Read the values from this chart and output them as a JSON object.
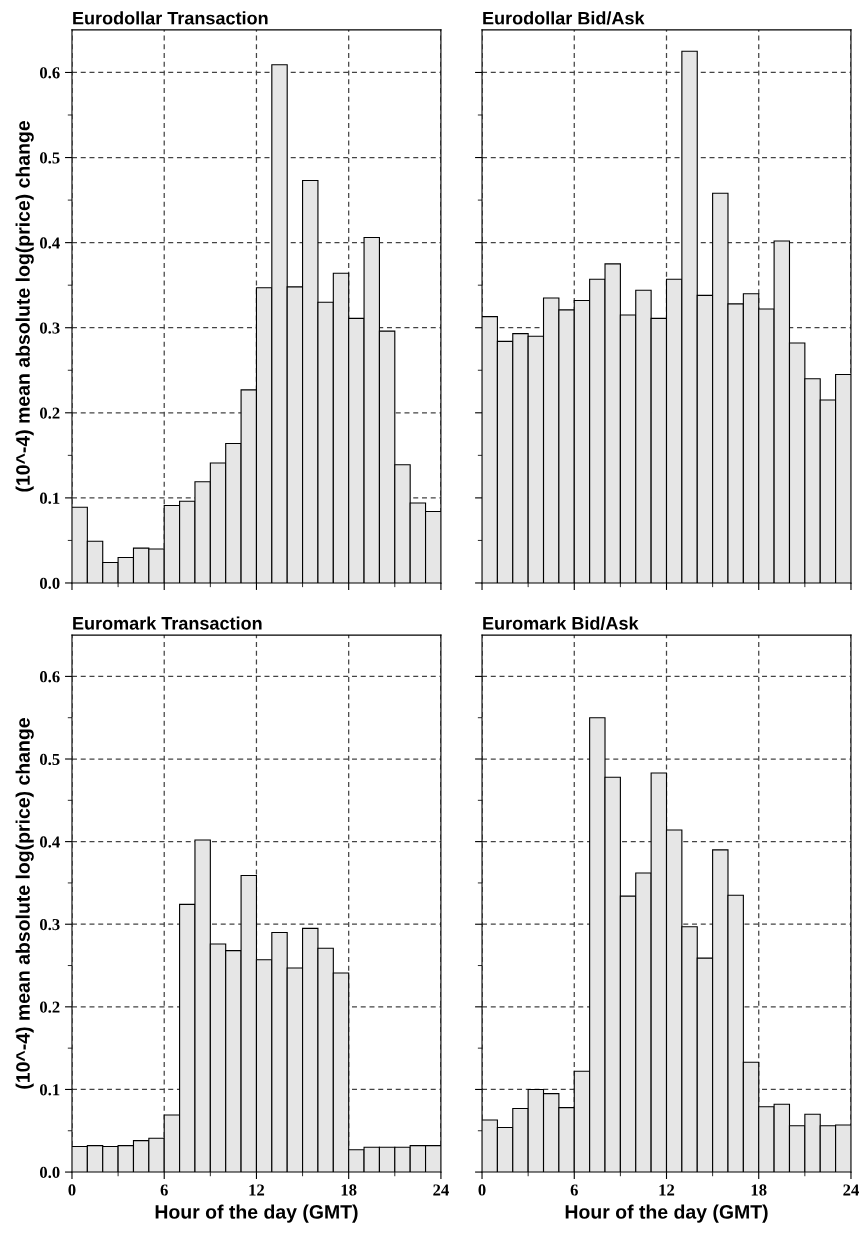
{
  "chart_data": [
    {
      "type": "histogram",
      "title": "Eurodollar Transaction",
      "ylabel": "(10^-4) mean absolute log(price) change",
      "bins": [
        0,
        1,
        2,
        3,
        4,
        5,
        6,
        7,
        8,
        9,
        10,
        11,
        12,
        13,
        14,
        15,
        16,
        17,
        18,
        19,
        20,
        21,
        22,
        23,
        24
      ],
      "values": [
        0.089,
        0.049,
        0.024,
        0.03,
        0.041,
        0.04,
        0.091,
        0.096,
        0.119,
        0.141,
        0.164,
        0.227,
        0.347,
        0.609,
        0.348,
        0.473,
        0.33,
        0.364,
        0.311,
        0.406,
        0.296,
        0.139,
        0.094,
        0.084
      ],
      "color": "#e6e6e6",
      "xlim": [
        0,
        24
      ],
      "ylim": [
        0,
        0.65
      ],
      "yticks": [
        {
          "value": 0,
          "label": "0.0"
        },
        {
          "value": 0.05,
          "label": null
        },
        {
          "value": 0.1,
          "label": "0.1"
        },
        {
          "value": 0.15,
          "label": null
        },
        {
          "value": 0.2,
          "label": "0.2"
        },
        {
          "value": 0.25,
          "label": null
        },
        {
          "value": 0.3,
          "label": "0.3"
        },
        {
          "value": 0.35,
          "label": null
        },
        {
          "value": 0.4,
          "label": "0.4"
        },
        {
          "value": 0.45,
          "label": null
        },
        {
          "value": 0.5,
          "label": "0.5"
        },
        {
          "value": 0.55,
          "label": null
        },
        {
          "value": 0.6,
          "label": "0.6"
        }
      ],
      "grid": true,
      "line_style": "dashed",
      "tick_labels": "y"
    },
    {
      "type": "histogram",
      "title": "Eurodollar Bid/Ask",
      "bins": [
        0,
        1,
        2,
        3,
        4,
        5,
        6,
        7,
        8,
        9,
        10,
        11,
        12,
        13,
        14,
        15,
        16,
        17,
        18,
        19,
        20,
        21,
        22,
        23,
        24
      ],
      "values": [
        0.313,
        0.284,
        0.293,
        0.29,
        0.335,
        0.321,
        0.332,
        0.357,
        0.375,
        0.315,
        0.344,
        0.311,
        0.357,
        0.625,
        0.338,
        0.458,
        0.328,
        0.34,
        0.322,
        0.402,
        0.282,
        0.24,
        0.215,
        0.245
      ],
      "color": "#e6e6e6",
      "xlim": [
        0,
        24
      ],
      "ylim": [
        0,
        0.65
      ],
      "grid": true,
      "line_style": "dashed",
      "tick_labels": false
    },
    {
      "type": "histogram",
      "title": "Euromark Transaction",
      "xlabel": "Hour of the day (GMT)",
      "ylabel": "(10^-4) mean absolute log(price) change",
      "bins": [
        0,
        1,
        2,
        3,
        4,
        5,
        6,
        7,
        8,
        9,
        10,
        11,
        12,
        13,
        14,
        15,
        16,
        17,
        18,
        19,
        20,
        21,
        22,
        23,
        24
      ],
      "values": [
        0.031,
        0.032,
        0.031,
        0.032,
        0.038,
        0.041,
        0.069,
        0.324,
        0.402,
        0.276,
        0.268,
        0.359,
        0.257,
        0.29,
        0.247,
        0.295,
        0.271,
        0.241,
        0.027,
        0.03,
        0.03,
        0.03,
        0.032,
        0.032
      ],
      "color": "#e6e6e6",
      "xlim": [
        0,
        24
      ],
      "ylim": [
        0,
        0.65
      ],
      "xticks": [
        0,
        {
          "value": 3,
          "label": null
        },
        6,
        {
          "value": 9,
          "label": null
        },
        12,
        {
          "value": 15,
          "label": null
        },
        18,
        {
          "value": 21,
          "label": null
        },
        24
      ],
      "yticks": [
        {
          "value": 0,
          "label": "0.0"
        },
        {
          "value": 0.05,
          "label": null
        },
        {
          "value": 0.1,
          "label": "0.1"
        },
        {
          "value": 0.15,
          "label": null
        },
        {
          "value": 0.2,
          "label": "0.2"
        },
        {
          "value": 0.25,
          "label": null
        },
        {
          "value": 0.3,
          "label": "0.3"
        },
        {
          "value": 0.35,
          "label": null
        },
        {
          "value": 0.4,
          "label": "0.4"
        },
        {
          "value": 0.45,
          "label": null
        },
        {
          "value": 0.5,
          "label": "0.5"
        },
        {
          "value": 0.55,
          "label": null
        },
        {
          "value": 0.6,
          "label": "0.6"
        }
      ],
      "grid": true,
      "line_style": "dashed"
    },
    {
      "type": "histogram",
      "title": "Euromark Bid/Ask",
      "xlabel": "Hour of the day (GMT)",
      "bins": [
        0,
        1,
        2,
        3,
        4,
        5,
        6,
        7,
        8,
        9,
        10,
        11,
        12,
        13,
        14,
        15,
        16,
        17,
        18,
        19,
        20,
        21,
        22,
        23,
        24
      ],
      "values": [
        0.063,
        0.054,
        0.077,
        0.1,
        0.095,
        0.078,
        0.122,
        0.55,
        0.478,
        0.334,
        0.362,
        0.483,
        0.414,
        0.297,
        0.259,
        0.39,
        0.335,
        0.133,
        0.079,
        0.082,
        0.056,
        0.07,
        0.056,
        0.057
      ],
      "color": "#e6e6e6",
      "xlim": [
        0,
        24
      ],
      "ylim": [
        0,
        0.65
      ],
      "xticks": [
        0,
        {
          "value": 3,
          "label": null
        },
        6,
        {
          "value": 9,
          "label": null
        },
        12,
        {
          "value": 15,
          "label": null
        },
        18,
        {
          "value": 21,
          "label": null
        },
        24
      ],
      "grid": true,
      "line_style": "dashed",
      "tick_labels": "x"
    }
  ]
}
